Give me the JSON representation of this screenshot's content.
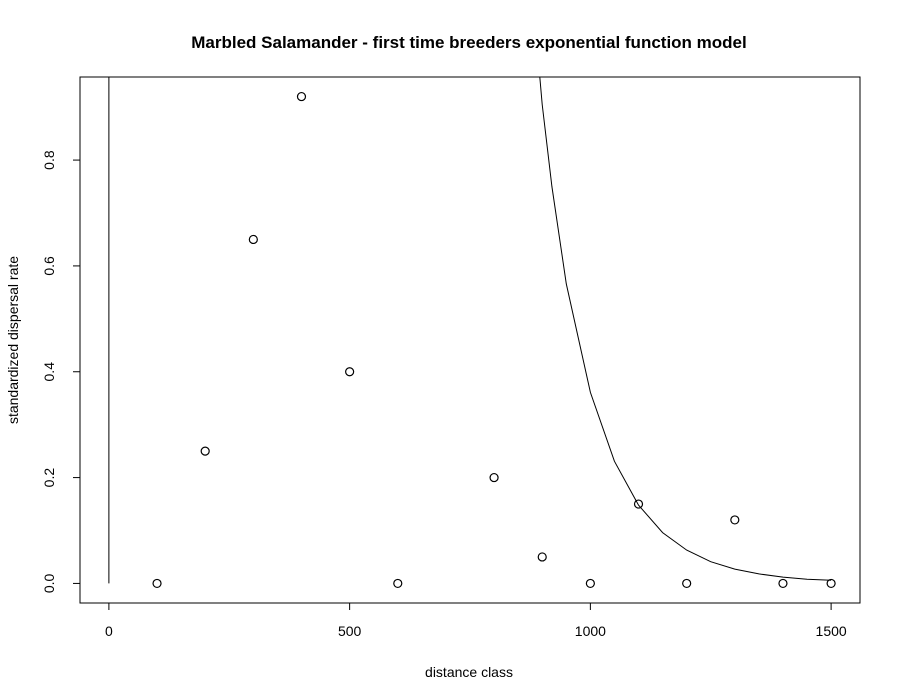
{
  "chart_data": {
    "type": "scatter",
    "title": "Marbled Salamander - first time breeders exponential function model",
    "xlabel": "distance class",
    "ylabel": "standardized dispersal rate",
    "xlim": [
      -60,
      1560
    ],
    "ylim": [
      -0.037,
      0.957
    ],
    "xticks": [
      0,
      500,
      1000,
      1500
    ],
    "yticks": [
      0.0,
      0.2,
      0.4,
      0.6,
      0.8
    ],
    "xtick_labels": [
      "0",
      "500",
      "1000",
      "1500"
    ],
    "ytick_labels": [
      "0.0",
      "0.2",
      "0.4",
      "0.6",
      "0.8"
    ],
    "grid": false,
    "legend": "none",
    "series": [
      {
        "kind": "points",
        "marker": "open-circle",
        "x": [
          100,
          200,
          300,
          400,
          500,
          600,
          800,
          900,
          1000,
          1100,
          1200,
          1300,
          1400,
          1500
        ],
        "y": [
          0.0,
          0.25,
          0.65,
          0.92,
          0.4,
          0.0,
          0.2,
          0.05,
          0.0,
          0.15,
          0.0,
          0.12,
          0.0,
          0.0
        ]
      },
      {
        "kind": "line",
        "x": [
          0,
          0
        ],
        "y": [
          0.0,
          0.957
        ]
      },
      {
        "kind": "curve",
        "function": "exponential",
        "x": [
          895,
          900,
          920,
          950,
          1000,
          1050,
          1100,
          1150,
          1200,
          1250,
          1300,
          1350,
          1400,
          1450,
          1500
        ],
        "y": [
          0.957,
          0.905,
          0.75,
          0.566,
          0.361,
          0.231,
          0.148,
          0.096,
          0.063,
          0.041,
          0.027,
          0.018,
          0.012,
          0.008,
          0.006
        ]
      }
    ]
  }
}
